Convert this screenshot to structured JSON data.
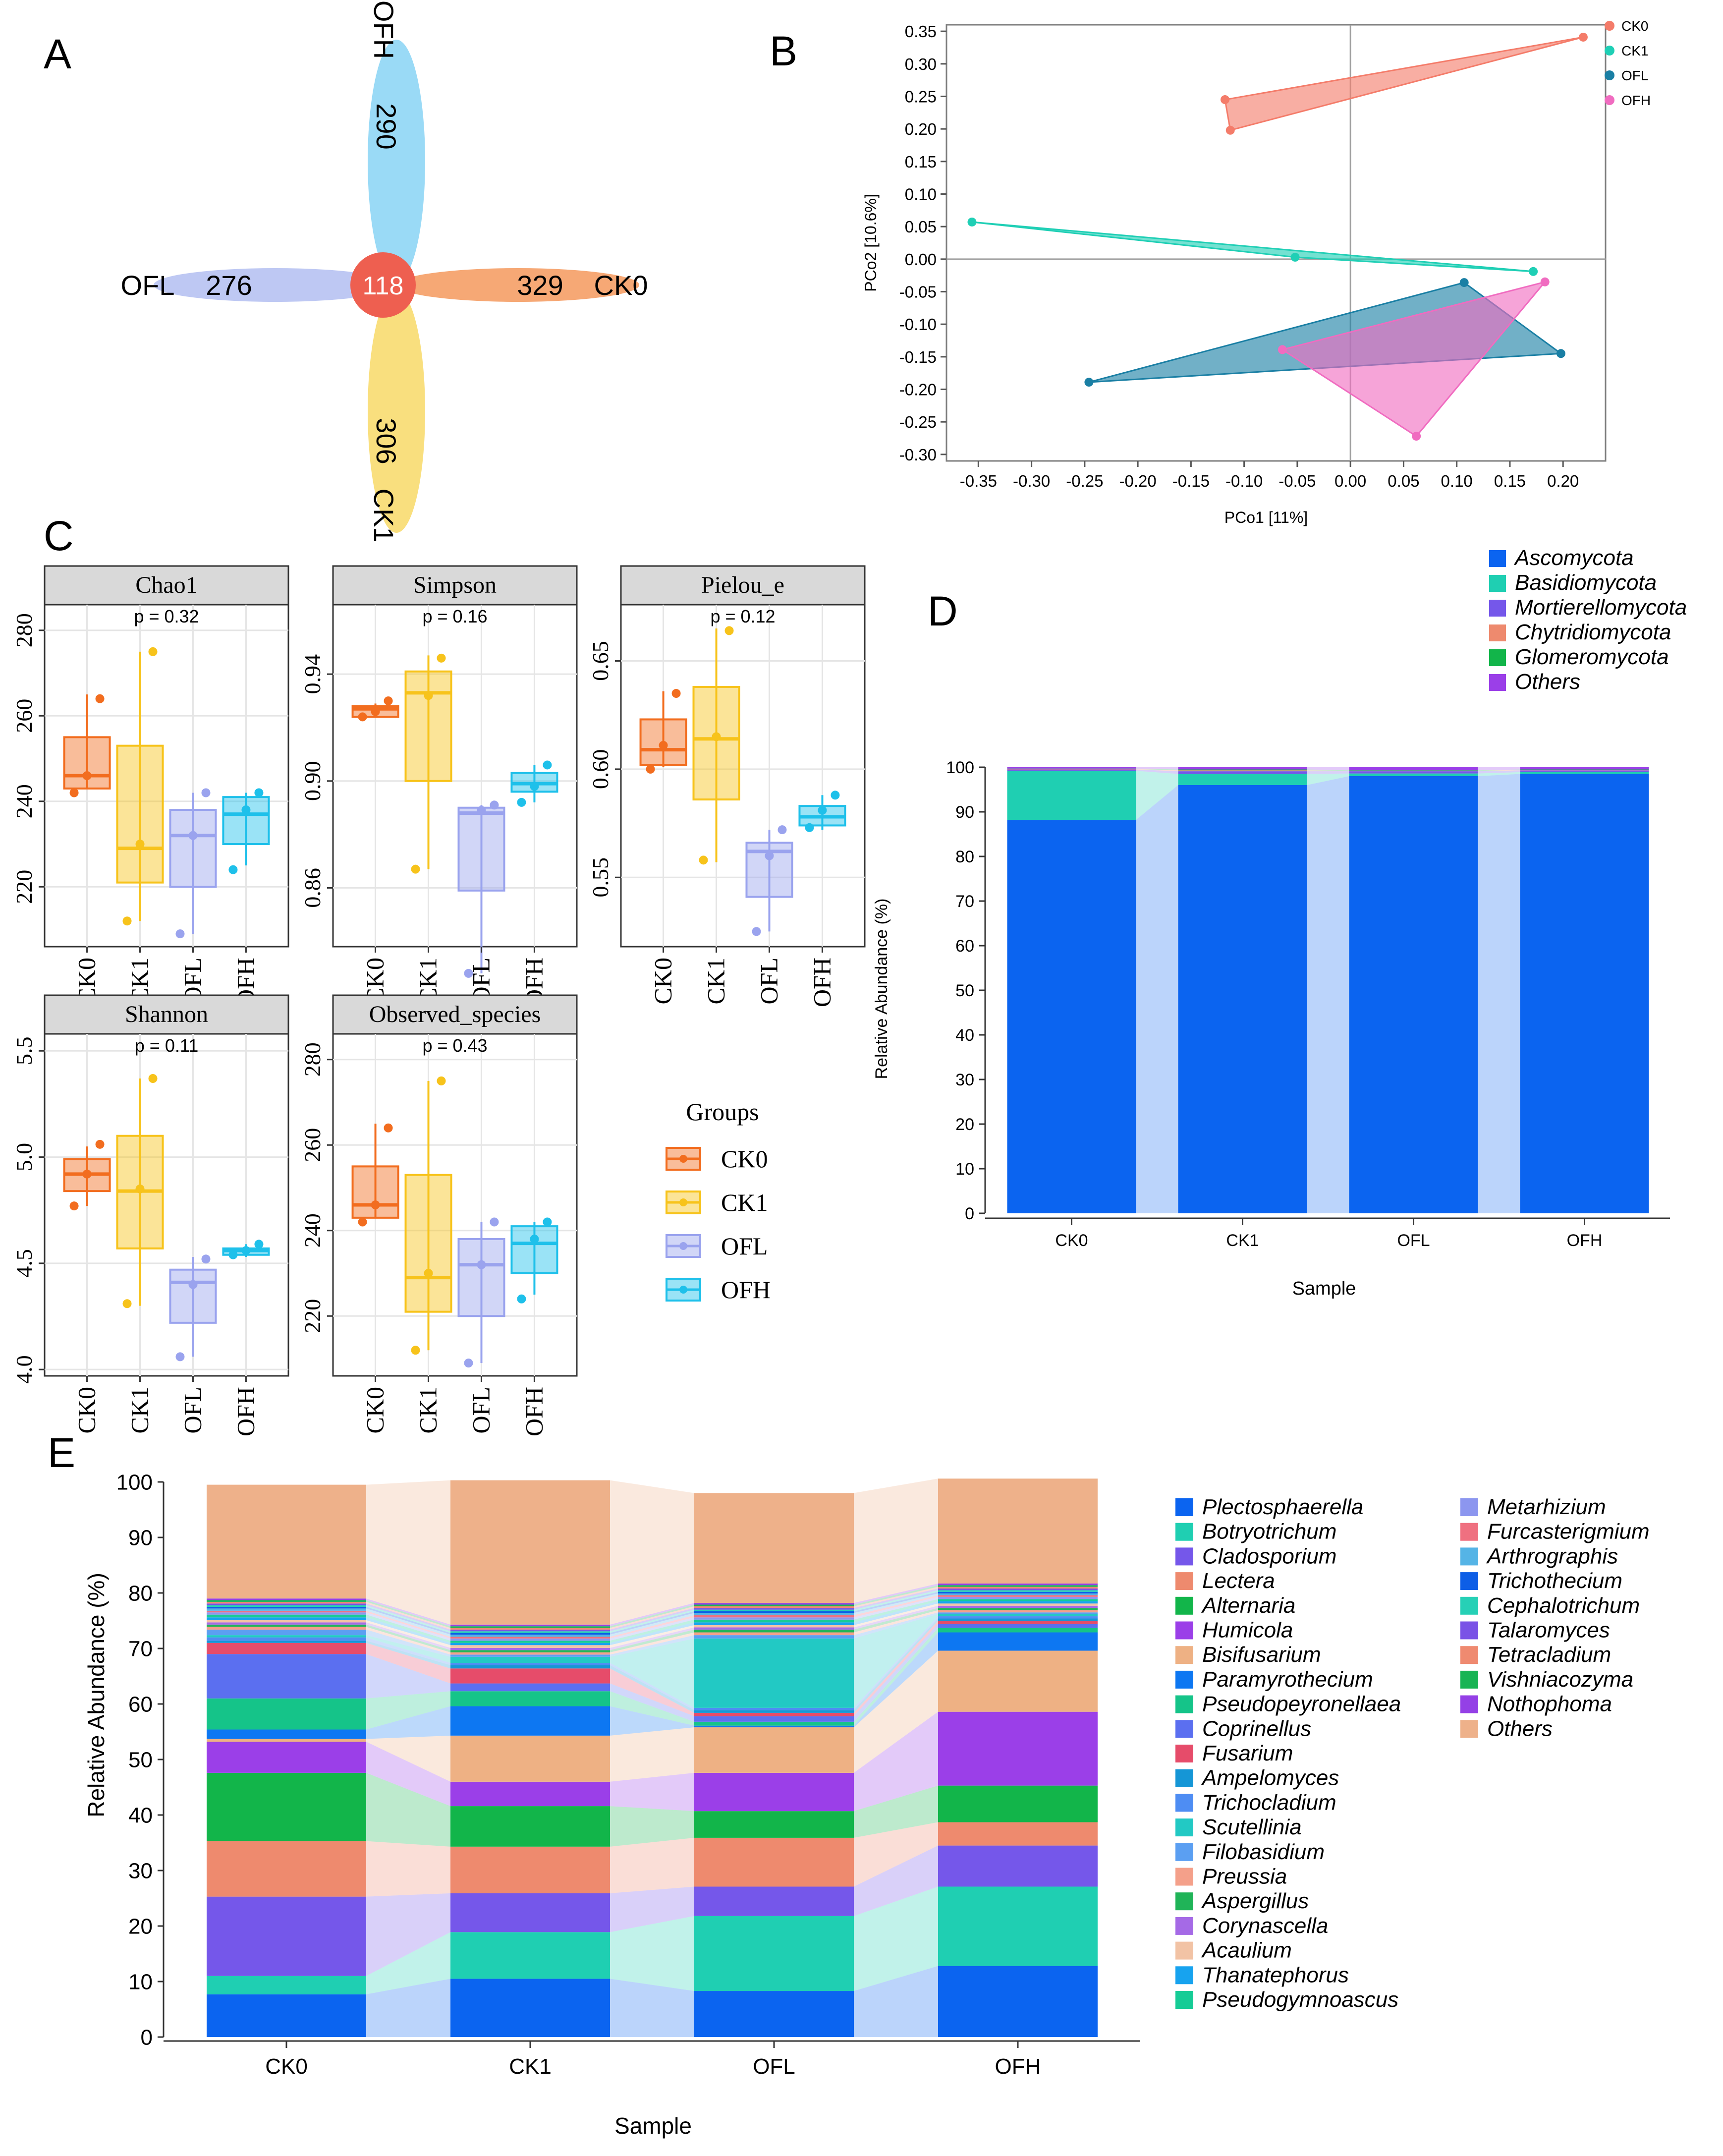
{
  "panel_letters": {
    "A": "A",
    "B": "B",
    "C": "C",
    "D": "D",
    "E": "E"
  },
  "groups": [
    "CK0",
    "CK1",
    "OFL",
    "OFH"
  ],
  "colors": {
    "CK0": "#f26d1f",
    "CK1": "#f7c31b",
    "OFL": "#9aa3ee",
    "OFH": "#1ec0ea",
    "pcoa_CK0": "#f47c6a",
    "pcoa_CK1": "#1fcfb5",
    "pcoa_OFL": "#1a7fa4",
    "pcoa_OFH": "#f06cc0",
    "strip": "#d9d9d9",
    "grid": "#e5e5e5"
  },
  "chart_data": [
    {
      "id": "A",
      "type": "venn",
      "sets": [
        {
          "name": "OFH",
          "unique": 290
        },
        {
          "name": "CK0",
          "unique": 329
        },
        {
          "name": "CK1",
          "unique": 306
        },
        {
          "name": "OFL",
          "unique": 276
        }
      ],
      "core": 118
    },
    {
      "id": "B",
      "type": "scatter",
      "xlabel": "PCo1 [11%]",
      "ylabel": "PCo2 [10.6%]",
      "xlim": [
        -0.38,
        0.24
      ],
      "ylim": [
        -0.31,
        0.36
      ],
      "xticks": [
        "-0.35",
        "-0.30",
        "-0.25",
        "-0.20",
        "-0.15",
        "-0.10",
        "-0.05",
        "0.00",
        "0.05",
        "0.10",
        "0.15",
        "0.20"
      ],
      "yticks": [
        "0.35",
        "0.30",
        "0.25",
        "0.20",
        "0.15",
        "0.10",
        "0.05",
        "0.00",
        "-0.05",
        "-0.10",
        "-0.15",
        "-0.20",
        "-0.25",
        "-0.30"
      ],
      "series": [
        {
          "name": "CK0",
          "points": [
            [
              -0.118,
              0.245
            ],
            [
              -0.113,
              0.198
            ],
            [
              0.219,
              0.341
            ]
          ]
        },
        {
          "name": "CK1",
          "points": [
            [
              -0.356,
              0.057
            ],
            [
              -0.052,
              0.003
            ],
            [
              0.172,
              -0.019
            ]
          ]
        },
        {
          "name": "OFL",
          "points": [
            [
              -0.246,
              -0.189
            ],
            [
              0.107,
              -0.036
            ],
            [
              0.198,
              -0.145
            ]
          ]
        },
        {
          "name": "OFH",
          "points": [
            [
              -0.064,
              -0.139
            ],
            [
              0.183,
              -0.035
            ],
            [
              0.062,
              -0.272
            ]
          ]
        }
      ]
    },
    {
      "id": "C",
      "type": "boxplot",
      "legend_title": "Groups",
      "facets": [
        {
          "title": "Chao1",
          "p": "p = 0.32",
          "ylim": [
            206,
            286
          ],
          "yticks": [
            220,
            240,
            260,
            280
          ],
          "boxes": [
            [
              243,
              246,
              255,
              265
            ],
            [
              221,
              229,
              253,
              275
            ],
            [
              220,
              232,
              238,
              242
            ],
            [
              230,
              237,
              241,
              242
            ]
          ],
          "whiskers": [
            [
              243,
              265
            ],
            [
              212,
              275
            ],
            [
              209,
              242
            ],
            [
              225,
              242
            ]
          ],
          "points": [
            [
              242,
              246,
              264
            ],
            [
              212,
              230,
              275
            ],
            [
              209,
              232,
              242
            ],
            [
              224,
              238,
              242
            ]
          ]
        },
        {
          "title": "Simpson",
          "p": "p = 0.16",
          "ylim": [
            0.838,
            0.966
          ],
          "yticks": [
            0.86,
            0.9,
            0.94
          ],
          "boxes": [
            [
              0.924,
              0.927,
              0.928,
              0.929
            ],
            [
              0.9,
              0.933,
              0.941,
              0.947
            ],
            [
              0.859,
              0.888,
              0.89,
              0.891
            ],
            [
              0.896,
              0.899,
              0.903,
              0.905
            ]
          ],
          "whiskers": [
            [
              0.924,
              0.929
            ],
            [
              0.867,
              0.947
            ],
            [
              0.828,
              0.891
            ],
            [
              0.892,
              0.906
            ]
          ],
          "points": [
            [
              0.924,
              0.926,
              0.93
            ],
            [
              0.867,
              0.932,
              0.946
            ],
            [
              0.828,
              0.889,
              0.891
            ],
            [
              0.892,
              0.898,
              0.906
            ]
          ]
        },
        {
          "title": "Pielou_e",
          "p": "p = 0.12",
          "ylim": [
            0.518,
            0.676
          ],
          "yticks": [
            0.55,
            0.6,
            0.65
          ],
          "boxes": [
            [
              0.602,
              0.609,
              0.623,
              0.636
            ],
            [
              0.586,
              0.614,
              0.638,
              0.665
            ],
            [
              0.541,
              0.562,
              0.566,
              0.572
            ],
            [
              0.574,
              0.578,
              0.583,
              0.588
            ]
          ],
          "whiskers": [
            [
              0.601,
              0.636
            ],
            [
              0.557,
              0.665
            ],
            [
              0.525,
              0.572
            ],
            [
              0.572,
              0.588
            ]
          ],
          "points": [
            [
              0.6,
              0.611,
              0.635
            ],
            [
              0.558,
              0.615,
              0.664
            ],
            [
              0.525,
              0.56,
              0.572
            ],
            [
              0.573,
              0.581,
              0.588
            ]
          ]
        },
        {
          "title": "Shannon",
          "p": "p = 0.11",
          "ylim": [
            3.97,
            5.58
          ],
          "yticks": [
            4.0,
            4.5,
            5.0,
            5.5
          ],
          "boxes": [
            [
              4.84,
              4.92,
              4.99,
              5.05
            ],
            [
              4.57,
              4.84,
              5.1,
              5.37
            ],
            [
              4.22,
              4.41,
              4.47,
              4.53
            ],
            [
              4.54,
              4.56,
              4.57,
              4.58
            ]
          ],
          "whiskers": [
            [
              4.77,
              5.05
            ],
            [
              4.3,
              5.37
            ],
            [
              4.06,
              4.53
            ],
            [
              4.53,
              4.59
            ]
          ],
          "points": [
            [
              4.77,
              4.92,
              5.06
            ],
            [
              4.31,
              4.85,
              5.37
            ],
            [
              4.06,
              4.4,
              4.52
            ],
            [
              4.54,
              4.56,
              4.59
            ]
          ]
        },
        {
          "title": "Observed_species",
          "p": "p = 0.43",
          "ylim": [
            206,
            286
          ],
          "yticks": [
            220,
            240,
            260,
            280
          ],
          "boxes": [
            [
              243,
              246,
              255,
              265
            ],
            [
              221,
              229,
              253,
              275
            ],
            [
              220,
              232,
              238,
              242
            ],
            [
              230,
              237,
              241,
              242
            ]
          ],
          "whiskers": [
            [
              243,
              265
            ],
            [
              212,
              275
            ],
            [
              209,
              242
            ],
            [
              225,
              242
            ]
          ],
          "points": [
            [
              242,
              246,
              264
            ],
            [
              212,
              230,
              275
            ],
            [
              209,
              232,
              242
            ],
            [
              224,
              238,
              242
            ]
          ]
        }
      ]
    },
    {
      "id": "D",
      "type": "bar",
      "xlabel": "Sample",
      "ylabel": "Relative Abundance (%)",
      "ylim": [
        0,
        100
      ],
      "yticks": [
        0,
        10,
        20,
        30,
        40,
        50,
        60,
        70,
        80,
        90,
        100
      ],
      "categories": [
        "CK0",
        "CK1",
        "OFL",
        "OFH"
      ],
      "series": [
        {
          "name": "Ascomycota",
          "color": "#0b64f0",
          "values": [
            88.2,
            96.0,
            98.0,
            98.5
          ]
        },
        {
          "name": "Basidiomycota",
          "color": "#1fcfb2",
          "values": [
            11.0,
            2.5,
            0.6,
            0.4
          ]
        },
        {
          "name": "Mortierellomycota",
          "color": "#7557ea",
          "values": [
            0.3,
            0.6,
            0.5,
            0.4
          ]
        },
        {
          "name": "Chytridiomycota",
          "color": "#ee8a6e",
          "values": [
            0.1,
            0.2,
            0.1,
            0.1
          ]
        },
        {
          "name": "Glomeromycota",
          "color": "#12b54a",
          "values": [
            0.1,
            0.2,
            0.1,
            0.1
          ]
        },
        {
          "name": "Others",
          "color": "#9b3fe8",
          "values": [
            0.3,
            0.5,
            0.7,
            0.5
          ]
        }
      ]
    },
    {
      "id": "E",
      "type": "bar",
      "xlabel": "Sample",
      "ylabel": "Relative Abundance (%)",
      "ylim": [
        0,
        100
      ],
      "yticks": [
        0,
        10,
        20,
        30,
        40,
        50,
        60,
        70,
        80,
        90,
        100
      ],
      "categories": [
        "CK0",
        "CK1",
        "OFL",
        "OFH"
      ],
      "series": [
        {
          "name": "Plectosphaerella",
          "color": "#0b64f0",
          "values": [
            7.7,
            10.5,
            8.3,
            12.8
          ]
        },
        {
          "name": "Botryotrichum",
          "color": "#1fcfb2",
          "values": [
            3.3,
            8.4,
            13.5,
            14.3
          ]
        },
        {
          "name": "Cladosporium",
          "color": "#7557ea",
          "values": [
            14.3,
            7.0,
            5.3,
            7.4
          ]
        },
        {
          "name": "Lectera",
          "color": "#ee8a6e",
          "values": [
            10.0,
            8.4,
            8.8,
            4.2
          ]
        },
        {
          "name": "Alternaria",
          "color": "#12b54a",
          "values": [
            12.3,
            7.3,
            4.8,
            6.6
          ]
        },
        {
          "name": "Humicola",
          "color": "#9b3fe8",
          "values": [
            5.6,
            4.4,
            6.9,
            13.3
          ]
        },
        {
          "name": "Bisifusarium",
          "color": "#eeb184",
          "values": [
            0.5,
            8.3,
            8.2,
            11.0
          ]
        },
        {
          "name": "Paramyrothecium",
          "color": "#0d77f2",
          "values": [
            1.7,
            5.3,
            0.3,
            3.3
          ]
        },
        {
          "name": "Pseudopeyronellaea",
          "color": "#15c489",
          "values": [
            5.6,
            2.7,
            0.7,
            0.8
          ]
        },
        {
          "name": "Coprinellus",
          "color": "#5b6ff0",
          "values": [
            8.0,
            1.4,
            1.0,
            0.7
          ]
        },
        {
          "name": "Fusarium",
          "color": "#e64c6a",
          "values": [
            2.0,
            2.7,
            0.6,
            0.6
          ]
        },
        {
          "name": "Ampelomyces",
          "color": "#1596d6",
          "values": [
            0.4,
            0.6,
            0.5,
            0.4
          ]
        },
        {
          "name": "Trichocladium",
          "color": "#4e8df3",
          "values": [
            0.6,
            0.4,
            0.4,
            0.4
          ]
        },
        {
          "name": "Scutellinia",
          "color": "#22c9c4",
          "values": [
            0.4,
            1.1,
            12.5,
            0.4
          ]
        },
        {
          "name": "Filobasidium",
          "color": "#5b9ff2",
          "values": [
            1.0,
            0.4,
            0.6,
            0.3
          ]
        },
        {
          "name": "Preussia",
          "color": "#f4a08a",
          "values": [
            0.5,
            0.4,
            0.5,
            0.4
          ]
        },
        {
          "name": "Aspergillus",
          "color": "#20b458",
          "values": [
            0.4,
            0.4,
            0.5,
            0.4
          ]
        },
        {
          "name": "Corynascella",
          "color": "#a56ae6",
          "values": [
            0.4,
            0.4,
            0.4,
            0.4
          ]
        },
        {
          "name": "Acaulium",
          "color": "#f2c3a5",
          "values": [
            0.4,
            0.5,
            0.4,
            0.4
          ]
        },
        {
          "name": "Thanatephorus",
          "color": "#17a3ef",
          "values": [
            0.5,
            0.4,
            0.5,
            0.4
          ]
        },
        {
          "name": "Pseudogymnoascus",
          "color": "#16cc96",
          "values": [
            0.5,
            0.4,
            0.5,
            0.4
          ]
        },
        {
          "name": "Metarhizium",
          "color": "#8c96ef",
          "values": [
            0.4,
            0.4,
            0.4,
            0.4
          ]
        },
        {
          "name": "Furcasterigmium",
          "color": "#ef7080",
          "values": [
            0.3,
            0.3,
            0.4,
            0.3
          ]
        },
        {
          "name": "Arthrographis",
          "color": "#55b4e6",
          "values": [
            0.4,
            0.4,
            0.4,
            0.3
          ]
        },
        {
          "name": "Trichothecium",
          "color": "#0d5ee6",
          "values": [
            0.3,
            0.3,
            0.3,
            0.3
          ]
        },
        {
          "name": "Cephalotrichum",
          "color": "#26d0b6",
          "values": [
            0.3,
            0.3,
            0.3,
            0.3
          ]
        },
        {
          "name": "Talaromyces",
          "color": "#7a52e6",
          "values": [
            0.3,
            0.3,
            0.3,
            0.3
          ]
        },
        {
          "name": "Tetracladium",
          "color": "#ef8a70",
          "values": [
            0.3,
            0.3,
            0.3,
            0.3
          ]
        },
        {
          "name": "Vishniacozyma",
          "color": "#18b454",
          "values": [
            0.3,
            0.3,
            0.3,
            0.3
          ]
        },
        {
          "name": "Nothophoma",
          "color": "#9440e6",
          "values": [
            0.3,
            0.3,
            0.3,
            0.3
          ]
        },
        {
          "name": "Others",
          "color": "#eeb18a",
          "values": [
            20.5,
            26.0,
            19.8,
            18.9
          ]
        }
      ]
    }
  ]
}
